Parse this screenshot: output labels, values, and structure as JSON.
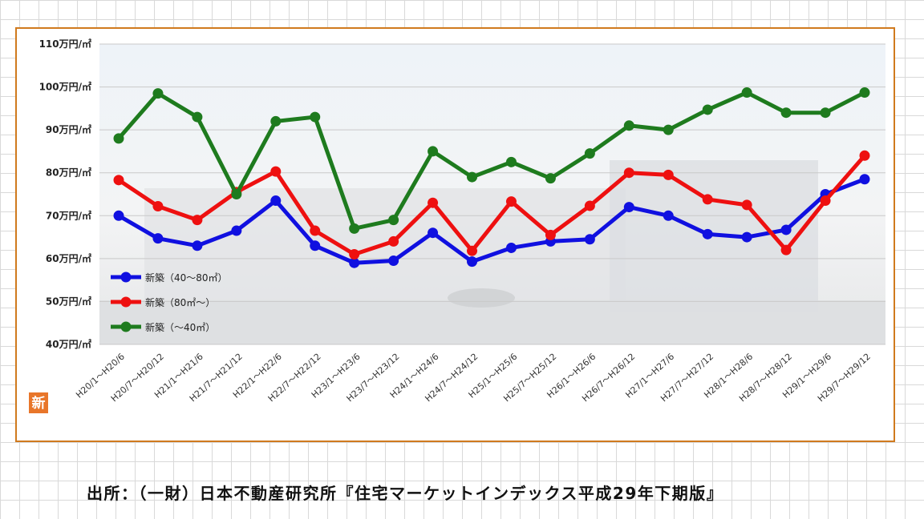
{
  "chart_data": {
    "type": "line",
    "title": "",
    "xlabel": "",
    "ylabel": "",
    "ylim": [
      40,
      110
    ],
    "y_ticks": [
      "40万円/㎡",
      "50万円/㎡",
      "60万円/㎡",
      "70万円/㎡",
      "80万円/㎡",
      "90万円/㎡",
      "100万円/㎡",
      "110万円/㎡"
    ],
    "y_tick_values": [
      40,
      50,
      60,
      70,
      80,
      90,
      100,
      110
    ],
    "categories": [
      "H20/1～H20/6",
      "H20/7～H20/12",
      "H21/1～H21/6",
      "H21/7～H21/12",
      "H22/1～H22/6",
      "H22/7～H22/12",
      "H23/1～H23/6",
      "H23/7～H23/12",
      "H24/1～H24/6",
      "H24/7～H24/12",
      "H25/1～H25/6",
      "H25/7～H25/12",
      "H26/1～H26/6",
      "H26/7～H26/12",
      "H27/1～H27/6",
      "H27/7～H27/12",
      "H28/1～H28/6",
      "H28/7～H28/12",
      "H29/1～H29/6",
      "H29/7～H29/12"
    ],
    "series": [
      {
        "name": "新築（40～80㎡）",
        "color": "#1010e0",
        "values": [
          70,
          64.7,
          63,
          66.5,
          73.5,
          63,
          59,
          59.5,
          66,
          59.3,
          62.5,
          64,
          64.5,
          72,
          70,
          65.7,
          65,
          66.7,
          75,
          78.5
        ]
      },
      {
        "name": "新築（80㎡～）",
        "color": "#ee1010",
        "values": [
          78.3,
          72.2,
          69,
          75.5,
          80.3,
          66.5,
          61,
          64,
          73,
          61.8,
          73.3,
          65.5,
          72.3,
          80,
          79.5,
          73.8,
          72.5,
          62,
          73.5,
          84
        ]
      },
      {
        "name": "新築（～40㎡）",
        "color": "#1e7b1e",
        "values": [
          88,
          98.5,
          93,
          75,
          92,
          93,
          67,
          69,
          85,
          79,
          82.5,
          78.7,
          84.5,
          91,
          90,
          94.7,
          98.7,
          94,
          94,
          98.7
        ]
      }
    ],
    "grid": true,
    "legend_position": "bottom-left"
  },
  "badge_icon": "shin-badge-icon",
  "badge_char": "新",
  "source_note": "出所：（一財）日本不動産研究所『住宅マーケットインデックス平成29年下期版』"
}
